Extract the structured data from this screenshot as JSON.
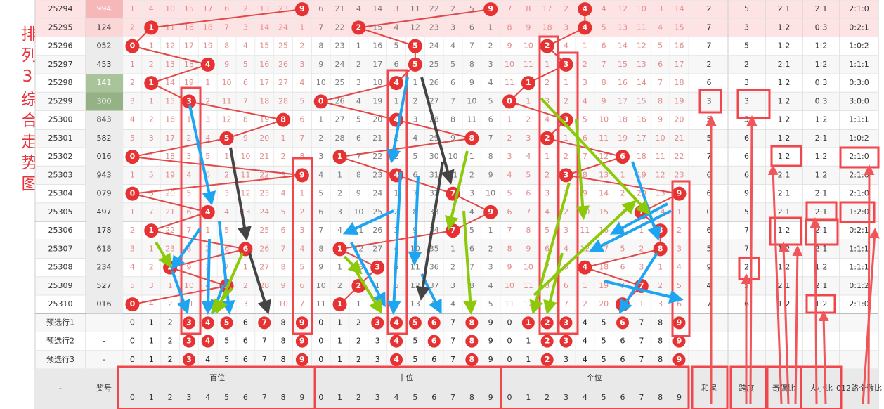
{
  "title": "排列3综合走势图",
  "footer": {
    "dash": "-",
    "number": "奖号",
    "positions": [
      "百位",
      "十位",
      "个位"
    ],
    "digits": [
      0,
      1,
      2,
      3,
      4,
      5,
      6,
      7,
      8,
      9
    ],
    "extra": [
      "和尾",
      "跨度",
      "奇偶比",
      "大小比",
      "012路个数比"
    ]
  },
  "rows": [
    {
      "period": "25294",
      "number": "994",
      "cells": [
        1,
        4,
        10,
        15,
        17,
        6,
        2,
        13,
        23,
        9,
        6,
        21,
        4,
        14,
        3,
        11,
        22,
        2,
        5,
        9,
        7,
        8,
        17,
        2,
        4,
        4,
        12,
        10,
        3,
        14
      ],
      "extra": [
        "2",
        "5",
        "2:1",
        "2:1",
        "2:1:0"
      ]
    },
    {
      "period": "25295",
      "number": "124",
      "cells": [
        2,
        1,
        11,
        16,
        18,
        7,
        3,
        14,
        24,
        1,
        7,
        22,
        2,
        15,
        4,
        12,
        23,
        3,
        6,
        1,
        8,
        9,
        18,
        3,
        4,
        5,
        13,
        11,
        4,
        15
      ],
      "extra": [
        "7",
        "3",
        "1:2",
        "0:3",
        "0:2:1"
      ]
    },
    {
      "period": "25296",
      "number": "052",
      "cells": [
        0,
        1,
        12,
        17,
        19,
        8,
        4,
        15,
        25,
        2,
        8,
        23,
        1,
        16,
        5,
        5,
        24,
        4,
        7,
        2,
        9,
        10,
        2,
        4,
        1,
        6,
        14,
        12,
        5,
        16
      ],
      "extra": [
        "7",
        "5",
        "1:2",
        "1:2",
        "1:0:2"
      ]
    },
    {
      "period": "25297",
      "number": "453",
      "cells": [
        1,
        2,
        13,
        18,
        4,
        9,
        5,
        16,
        26,
        3,
        9,
        24,
        2,
        17,
        6,
        5,
        25,
        5,
        8,
        3,
        10,
        11,
        1,
        3,
        2,
        7,
        15,
        13,
        6,
        17
      ],
      "extra": [
        "2",
        "2",
        "2:1",
        "1:2",
        "1:1:1"
      ]
    },
    {
      "period": "25298",
      "number": "141",
      "cells": [
        2,
        1,
        14,
        19,
        1,
        10,
        6,
        17,
        27,
        4,
        10,
        25,
        3,
        18,
        4,
        1,
        26,
        6,
        9,
        4,
        11,
        1,
        2,
        1,
        3,
        8,
        16,
        14,
        7,
        18
      ],
      "extra": [
        "6",
        "3",
        "1:2",
        "0:3",
        "0:3:0"
      ]
    },
    {
      "period": "25299",
      "number": "300",
      "cells": [
        3,
        1,
        15,
        3,
        2,
        11,
        7,
        18,
        28,
        5,
        0,
        26,
        4,
        19,
        1,
        2,
        27,
        7,
        10,
        5,
        0,
        1,
        3,
        2,
        4,
        9,
        17,
        15,
        8,
        19
      ],
      "extra": [
        "3",
        "3",
        "1:2",
        "0:3",
        "3:0:0"
      ]
    },
    {
      "period": "25300",
      "number": "843",
      "cells": [
        4,
        2,
        16,
        1,
        3,
        12,
        8,
        19,
        8,
        6,
        1,
        27,
        5,
        20,
        4,
        3,
        28,
        8,
        11,
        6,
        1,
        2,
        4,
        3,
        5,
        10,
        18,
        16,
        9,
        20
      ],
      "extra": [
        "5",
        "5",
        "1:2",
        "1:2",
        "1:1:1"
      ]
    },
    {
      "period": "25301",
      "number": "582",
      "cells": [
        5,
        3,
        17,
        2,
        4,
        5,
        9,
        20,
        1,
        7,
        2,
        28,
        6,
        21,
        1,
        4,
        29,
        9,
        8,
        7,
        2,
        3,
        2,
        1,
        6,
        11,
        19,
        17,
        10,
        21
      ],
      "extra": [
        "5",
        "6",
        "1:2",
        "2:1",
        "1:0:2"
      ]
    },
    {
      "period": "25302",
      "number": "016",
      "cells": [
        0,
        4,
        18,
        3,
        5,
        1,
        10,
        21,
        2,
        8,
        3,
        1,
        7,
        22,
        2,
        5,
        30,
        10,
        1,
        8,
        3,
        4,
        1,
        2,
        7,
        12,
        6,
        18,
        11,
        22
      ],
      "extra": [
        "7",
        "6",
        "1:2",
        "1:2",
        "2:1:0"
      ]
    },
    {
      "period": "25303",
      "number": "943",
      "cells": [
        1,
        5,
        19,
        4,
        6,
        2,
        11,
        22,
        3,
        9,
        4,
        1,
        8,
        23,
        4,
        6,
        31,
        11,
        2,
        9,
        4,
        5,
        2,
        3,
        8,
        13,
        1,
        19,
        12,
        23
      ],
      "extra": [
        "6",
        "6",
        "2:1",
        "1:2",
        "2:1:0"
      ]
    },
    {
      "period": "25304",
      "number": "079",
      "cells": [
        0,
        6,
        20,
        5,
        7,
        3,
        12,
        23,
        4,
        1,
        5,
        2,
        9,
        24,
        1,
        7,
        32,
        7,
        3,
        10,
        5,
        6,
        3,
        1,
        9,
        14,
        2,
        20,
        13,
        9
      ],
      "extra": [
        "6",
        "9",
        "2:1",
        "2:1",
        "2:1:0"
      ]
    },
    {
      "period": "25305",
      "number": "497",
      "cells": [
        1,
        7,
        21,
        6,
        4,
        4,
        13,
        24,
        5,
        2,
        6,
        3,
        10,
        25,
        2,
        8,
        33,
        1,
        4,
        9,
        6,
        7,
        4,
        2,
        10,
        15,
        3,
        7,
        14,
        1
      ],
      "extra": [
        "0",
        "5",
        "2:1",
        "2:1",
        "1:2:0"
      ]
    },
    {
      "period": "25306",
      "number": "178",
      "cells": [
        2,
        1,
        22,
        7,
        1,
        5,
        14,
        25,
        6,
        3,
        7,
        4,
        11,
        26,
        3,
        9,
        34,
        7,
        5,
        1,
        7,
        8,
        5,
        3,
        11,
        16,
        4,
        1,
        8,
        2
      ],
      "extra": [
        "6",
        "7",
        "1:2",
        "2:1",
        "0:2:1"
      ]
    },
    {
      "period": "25307",
      "number": "618",
      "cells": [
        3,
        1,
        23,
        8,
        2,
        6,
        6,
        26,
        7,
        4,
        8,
        1,
        12,
        27,
        4,
        10,
        35,
        1,
        6,
        2,
        8,
        9,
        6,
        4,
        12,
        17,
        5,
        2,
        8,
        3
      ],
      "extra": [
        "5",
        "7",
        "1:2",
        "2:1",
        "1:1:1"
      ]
    },
    {
      "period": "25308",
      "number": "234",
      "cells": [
        4,
        2,
        2,
        9,
        3,
        7,
        1,
        27,
        8,
        5,
        9,
        1,
        13,
        3,
        5,
        11,
        36,
        2,
        7,
        3,
        9,
        10,
        7,
        5,
        4,
        18,
        6,
        3,
        1,
        4
      ],
      "extra": [
        "9",
        "2",
        "1:2",
        "1:2",
        "1:1:1"
      ]
    },
    {
      "period": "25309",
      "number": "527",
      "cells": [
        5,
        3,
        1,
        10,
        4,
        5,
        2,
        28,
        9,
        6,
        10,
        2,
        2,
        1,
        6,
        12,
        37,
        3,
        8,
        4,
        10,
        11,
        8,
        6,
        1,
        19,
        7,
        7,
        2,
        5
      ],
      "extra": [
        "4",
        "5",
        "2:1",
        "2:1",
        "0:1:2"
      ]
    },
    {
      "period": "25310",
      "number": "016",
      "cells": [
        0,
        4,
        2,
        11,
        5,
        1,
        3,
        29,
        10,
        7,
        11,
        1,
        1,
        2,
        7,
        13,
        38,
        4,
        9,
        5,
        11,
        12,
        9,
        7,
        2,
        20,
        6,
        1,
        3,
        6
      ],
      "extra": [
        "7",
        "6",
        "1:2",
        "1:2",
        "2:1:0"
      ]
    }
  ],
  "preselect": [
    {
      "label": "预选行1",
      "dash": "-",
      "selected": [
        [
          3,
          4,
          5,
          7,
          9
        ],
        [
          3,
          4,
          5,
          6,
          8
        ],
        [
          1,
          2,
          3,
          6,
          9
        ]
      ]
    },
    {
      "label": "预选行2",
      "dash": "-",
      "selected": [
        [
          3,
          4,
          9
        ],
        [
          4,
          6,
          8
        ],
        [
          2,
          3,
          9
        ]
      ]
    },
    {
      "label": "预选行3",
      "dash": "-",
      "selected": [
        [
          3,
          9
        ],
        [
          4,
          8
        ],
        [
          2,
          9
        ]
      ]
    }
  ]
}
